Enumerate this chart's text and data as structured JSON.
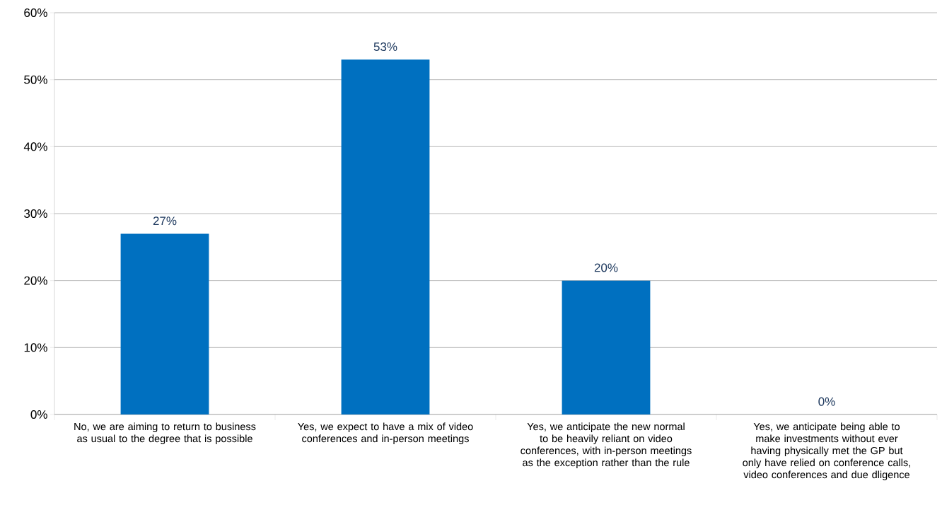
{
  "chart_data": {
    "type": "bar",
    "categories": [
      "No, we are aiming to return to business as usual to the degree that is possible",
      "Yes, we expect to have a mix of video conferences and in-person meetings",
      "Yes, we anticipate the new normal to be heavily reliant on video conferences, with in-person meetings as the exception rather than the rule",
      "Yes, we anticipate being able to make investments without ever having physically met the GP but only have relied on conference calls, video conferences and due dligence"
    ],
    "values": [
      27,
      53,
      20,
      0
    ],
    "value_labels": [
      "27%",
      "53%",
      "20%",
      "0%"
    ],
    "color": "#0070c0",
    "ylim": [
      0,
      60
    ],
    "yticks": [
      {
        "value": 0,
        "label": "0%"
      },
      {
        "value": 10,
        "label": "10%"
      },
      {
        "value": 20,
        "label": "20%"
      },
      {
        "value": 30,
        "label": "30%"
      },
      {
        "value": 40,
        "label": "40%"
      },
      {
        "value": 50,
        "label": "50%"
      },
      {
        "value": 60,
        "label": "60%"
      }
    ],
    "grid": "y"
  }
}
